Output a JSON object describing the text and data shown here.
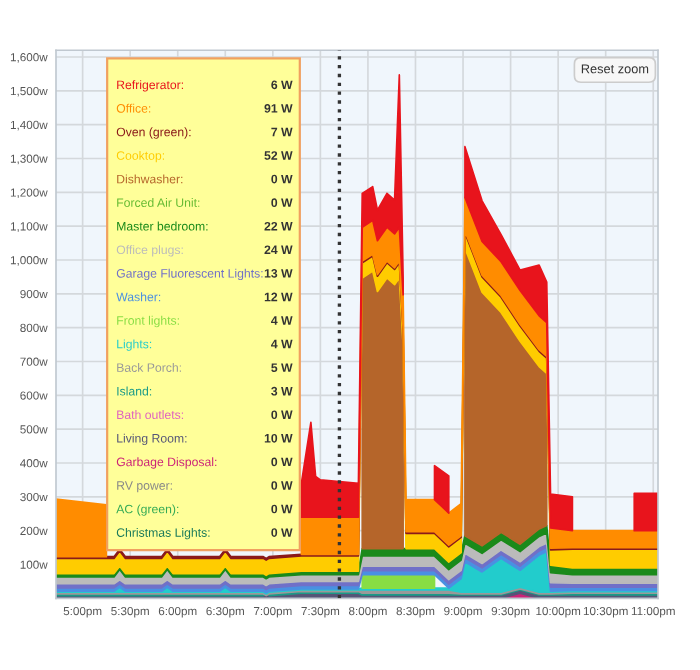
{
  "chart_data": {
    "type": "area",
    "stacked": true,
    "x": [
      16.72,
      17.25,
      17.33,
      17.39,
      17.45,
      17.83,
      17.89,
      17.95,
      18.44,
      18.5,
      18.56,
      18.9,
      18.93,
      18.96,
      19.3,
      19.4,
      19.45,
      19.5,
      19.9,
      19.94,
      20.05,
      20.1,
      20.2,
      20.28,
      20.33,
      20.37,
      20.4,
      20.6,
      20.7,
      20.85,
      20.98,
      21.02,
      21.2,
      21.4,
      21.6,
      21.8,
      21.88,
      21.92,
      22.15,
      22.2,
      22.75,
      22.8,
      23.05
    ],
    "series": [
      {
        "name": "Christmas Lights:",
        "color": "#1a7a5a",
        "values": [
          null,
          null,
          null,
          null,
          null,
          null,
          null,
          null,
          null,
          null,
          null,
          null,
          null,
          null,
          null,
          null,
          null,
          null,
          null,
          null,
          null,
          null,
          null,
          null,
          null,
          null,
          null,
          null,
          null,
          null,
          null,
          null,
          null,
          null,
          null,
          null,
          null,
          null,
          null,
          null,
          null,
          null,
          null
        ]
      },
      {
        "name": "AC (green):",
        "color": "#33aa55",
        "values": [
          null,
          null,
          null,
          null,
          null,
          null,
          null,
          null,
          null,
          null,
          null,
          null,
          null,
          null,
          null,
          null,
          null,
          null,
          null,
          null,
          null,
          null,
          null,
          null,
          null,
          null,
          null,
          null,
          null,
          null,
          null,
          null,
          null,
          null,
          null,
          null,
          null,
          null,
          null,
          null,
          null,
          null,
          null
        ]
      },
      {
        "name": "RV power:",
        "color": "#888888",
        "values": [
          null,
          null,
          null,
          null,
          null,
          null,
          null,
          null,
          null,
          null,
          null,
          null,
          null,
          null,
          null,
          null,
          null,
          null,
          null,
          null,
          null,
          null,
          null,
          null,
          null,
          null,
          null,
          null,
          null,
          null,
          null,
          null,
          null,
          null,
          null,
          null,
          null,
          null,
          null,
          null,
          null,
          null,
          null
        ]
      },
      {
        "name": "Garbage Disposal:",
        "color": "#cc2277",
        "values": [
          null,
          null,
          null,
          null,
          null,
          null,
          null,
          null,
          null,
          null,
          null,
          null,
          null,
          null,
          null,
          null,
          null,
          null,
          null,
          null,
          null,
          null,
          null,
          null,
          null,
          null,
          null,
          null,
          null,
          null,
          null,
          null,
          null,
          0,
          15,
          0,
          null,
          null,
          null,
          null,
          null,
          null,
          null
        ]
      },
      {
        "name": "Living Room:",
        "color": "#555577",
        "values": [
          8,
          8,
          8,
          8,
          8,
          8,
          8,
          8,
          8,
          8,
          8,
          8,
          8,
          8,
          15,
          15,
          15,
          15,
          15,
          10,
          10,
          10,
          10,
          10,
          10,
          10,
          10,
          10,
          10,
          10,
          10,
          10,
          10,
          10,
          10,
          10,
          10,
          10,
          10,
          10,
          10,
          10,
          10
        ]
      },
      {
        "name": "Bath outlets:",
        "color": "#e060c0",
        "values": [
          null,
          null,
          null,
          null,
          null,
          null,
          null,
          null,
          null,
          null,
          null,
          null,
          null,
          null,
          null,
          null,
          null,
          null,
          null,
          null,
          null,
          null,
          null,
          null,
          null,
          null,
          null,
          null,
          null,
          null,
          null,
          null,
          null,
          null,
          null,
          null,
          null,
          null,
          null,
          null,
          null,
          null,
          null
        ]
      },
      {
        "name": "Island:",
        "color": "#1a9a88",
        "values": [
          5,
          5,
          5,
          5,
          5,
          5,
          5,
          5,
          5,
          5,
          5,
          5,
          null,
          5,
          5,
          5,
          5,
          5,
          5,
          5,
          5,
          5,
          5,
          5,
          5,
          5,
          5,
          5,
          5,
          5,
          3,
          3,
          3,
          3,
          3,
          3,
          3,
          3,
          5,
          5,
          5,
          5,
          5
        ]
      },
      {
        "name": "Back Porch:",
        "color": "#999999",
        "values": [
          5,
          5,
          5,
          5,
          5,
          5,
          5,
          5,
          5,
          5,
          5,
          5,
          5,
          5,
          5,
          5,
          5,
          5,
          5,
          10,
          10,
          10,
          10,
          10,
          10,
          10,
          10,
          10,
          10,
          10,
          5,
          5,
          5,
          5,
          5,
          5,
          5,
          5,
          5,
          5,
          5,
          5,
          5
        ]
      },
      {
        "name": "Lights:",
        "color": "#22cccc",
        "values": [
          3,
          3,
          3,
          15,
          3,
          3,
          15,
          3,
          3,
          15,
          3,
          3,
          3,
          3,
          3,
          3,
          3,
          3,
          3,
          5,
          5,
          5,
          5,
          5,
          5,
          5,
          5,
          5,
          5,
          5,
          40,
          90,
          60,
          100,
          50,
          110,
          120,
          3,
          3,
          3,
          3,
          3,
          3
        ]
      },
      {
        "name": "Front lights:",
        "color": "#88dd44",
        "values": [
          null,
          null,
          null,
          null,
          null,
          null,
          null,
          null,
          null,
          null,
          null,
          null,
          null,
          null,
          null,
          null,
          null,
          null,
          null,
          40,
          40,
          40,
          40,
          40,
          40,
          40,
          40,
          40,
          40,
          null,
          null,
          null,
          null,
          null,
          null,
          null,
          null,
          null,
          null,
          null,
          null,
          null,
          null
        ]
      },
      {
        "name": "Washer:",
        "color": "#4a90e2",
        "values": [
          10,
          10,
          10,
          10,
          10,
          10,
          10,
          10,
          10,
          10,
          10,
          10,
          10,
          10,
          10,
          10,
          10,
          10,
          10,
          12,
          12,
          12,
          12,
          12,
          12,
          12,
          12,
          12,
          12,
          12,
          12,
          12,
          12,
          12,
          12,
          12,
          12,
          12,
          10,
          10,
          10,
          10,
          10
        ]
      },
      {
        "name": "Garage Fluorescent Lights:",
        "color": "#7070c8",
        "values": [
          12,
          12,
          12,
          12,
          12,
          12,
          12,
          12,
          12,
          12,
          12,
          12,
          12,
          12,
          12,
          12,
          12,
          12,
          12,
          13,
          13,
          13,
          13,
          13,
          13,
          13,
          13,
          13,
          13,
          13,
          13,
          13,
          13,
          13,
          13,
          13,
          13,
          13,
          12,
          12,
          12,
          12,
          12
        ]
      },
      {
        "name": "Office plugs:",
        "color": "#bbbbbb",
        "values": [
          20,
          20,
          20,
          30,
          20,
          20,
          30,
          20,
          20,
          30,
          20,
          20,
          20,
          20,
          20,
          20,
          20,
          20,
          20,
          30,
          30,
          30,
          30,
          30,
          30,
          30,
          30,
          30,
          30,
          30,
          30,
          30,
          30,
          30,
          30,
          30,
          30,
          30,
          25,
          25,
          25,
          25,
          25
        ]
      },
      {
        "name": "Master bedroom:",
        "color": "#1a8a1a",
        "values": [
          10,
          10,
          10,
          10,
          10,
          10,
          10,
          10,
          10,
          10,
          10,
          10,
          10,
          10,
          10,
          10,
          10,
          10,
          10,
          22,
          22,
          22,
          22,
          22,
          22,
          22,
          22,
          22,
          22,
          22,
          22,
          22,
          22,
          22,
          22,
          22,
          22,
          22,
          20,
          20,
          20,
          20,
          20
        ]
      },
      {
        "name": "Forced Air Unit:",
        "color": "#66bb33",
        "values": [
          null,
          null,
          null,
          null,
          null,
          null,
          null,
          null,
          null,
          null,
          null,
          null,
          null,
          null,
          null,
          null,
          null,
          null,
          null,
          null,
          null,
          null,
          null,
          null,
          null,
          null,
          null,
          null,
          null,
          null,
          null,
          null,
          null,
          null,
          null,
          null,
          null,
          null,
          null,
          null,
          null,
          null,
          null
        ]
      },
      {
        "name": "Dishwasher:",
        "color": "#b5652a",
        "values": [
          null,
          null,
          null,
          null,
          null,
          null,
          null,
          null,
          null,
          null,
          null,
          null,
          null,
          null,
          null,
          null,
          null,
          null,
          null,
          800,
          820,
          760,
          800,
          780,
          800,
          600,
          null,
          null,
          null,
          null,
          null,
          850,
          750,
          650,
          600,
          480,
          450,
          null,
          null,
          null,
          null,
          null,
          null
        ]
      },
      {
        "name": "Cooktop:",
        "color": "#ffcc00",
        "values": [
          45,
          45,
          45,
          45,
          45,
          45,
          45,
          45,
          45,
          45,
          45,
          45,
          45,
          45,
          45,
          45,
          45,
          45,
          45,
          45,
          45,
          45,
          45,
          45,
          45,
          45,
          45,
          45,
          45,
          45,
          45,
          45,
          45,
          45,
          45,
          45,
          45,
          45,
          55,
          55,
          55,
          55,
          55
        ]
      },
      {
        "name": "Oven (green):",
        "color": "#8b1a1a",
        "values": [
          5,
          5,
          5,
          5,
          5,
          5,
          5,
          5,
          5,
          5,
          5,
          5,
          5,
          5,
          5,
          5,
          5,
          5,
          5,
          5,
          5,
          5,
          5,
          5,
          5,
          5,
          5,
          5,
          5,
          5,
          5,
          5,
          5,
          5,
          5,
          5,
          5,
          5,
          5,
          5,
          5,
          5,
          5
        ]
      },
      {
        "name": "Office:",
        "color": "#ff8c00",
        "values": [
          170,
          153,
          null,
          null,
          null,
          null,
          null,
          null,
          null,
          null,
          null,
          null,
          null,
          null,
          110,
          110,
          110,
          110,
          110,
          100,
          100,
          100,
          100,
          100,
          100,
          100,
          95,
          95,
          95,
          95,
          95,
          100,
          100,
          100,
          100,
          100,
          100,
          60,
          50,
          50,
          50,
          50,
          50
        ]
      },
      {
        "name": "Refrigerator:",
        "color": "#e8141c",
        "values": [
          null,
          null,
          null,
          null,
          null,
          null,
          null,
          null,
          null,
          null,
          null,
          null,
          null,
          null,
          100,
          280,
          120,
          110,
          100,
          100,
          100,
          90,
          100,
          100,
          450,
          50,
          null,
          null,
          100,
          110,
          null,
          150,
          120,
          80,
          60,
          150,
          120,
          100,
          100,
          null,
          null,
          110,
          110
        ]
      }
    ],
    "xlim": [
      16.72,
      23.05
    ],
    "ylim": [
      0,
      1620
    ],
    "xticks": [
      {
        "value": 17,
        "label": "5:00pm"
      },
      {
        "value": 17.5,
        "label": "5:30pm"
      },
      {
        "value": 18,
        "label": "6:00pm"
      },
      {
        "value": 18.5,
        "label": "6:30pm"
      },
      {
        "value": 19,
        "label": "7:00pm"
      },
      {
        "value": 19.5,
        "label": "7:30pm"
      },
      {
        "value": 20,
        "label": "8:00pm"
      },
      {
        "value": 20.5,
        "label": "8:30pm"
      },
      {
        "value": 21,
        "label": "9:00pm"
      },
      {
        "value": 21.5,
        "label": "9:30pm"
      },
      {
        "value": 22,
        "label": "10:00pm"
      },
      {
        "value": 22.5,
        "label": "10:30pm"
      },
      {
        "value": 23,
        "label": "11:00pm"
      }
    ],
    "yticks": [
      {
        "value": 100,
        "label": "100w"
      },
      {
        "value": 200,
        "label": "200w"
      },
      {
        "value": 300,
        "label": "300w"
      },
      {
        "value": 400,
        "label": "400w"
      },
      {
        "value": 500,
        "label": "500w"
      },
      {
        "value": 600,
        "label": "600w"
      },
      {
        "value": 700,
        "label": "700w"
      },
      {
        "value": 800,
        "label": "800w"
      },
      {
        "value": 900,
        "label": "900w"
      },
      {
        "value": 1000,
        "label": "1,000w"
      },
      {
        "value": 1100,
        "label": "1,100w"
      },
      {
        "value": 1200,
        "label": "1,200w"
      },
      {
        "value": 1300,
        "label": "1,300w"
      },
      {
        "value": 1400,
        "label": "1,400w"
      },
      {
        "value": 1500,
        "label": "1,500w"
      },
      {
        "value": 1600,
        "label": "1,600w"
      }
    ],
    "ref_lines": [
      {
        "axis": "x",
        "value": 19.7,
        "color": "#333333",
        "line_style": "dotted"
      }
    ],
    "grid": true,
    "annotations": [
      "0 W",
      "0 W",
      "0 W",
      "0 W",
      "10 W",
      "0 W",
      "3 W",
      "5 W",
      "4 W",
      "4 W",
      "12 W",
      "13 W",
      "24 W",
      "22 W",
      "0 W",
      "0 W",
      "52 W",
      "7 W",
      "91 W",
      "6 W",
      "Reset zoom"
    ]
  }
}
